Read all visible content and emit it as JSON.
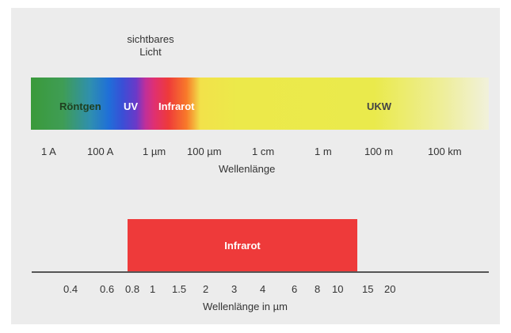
{
  "visible_light_label": "sichtbares Licht",
  "spectrum_bands": [
    {
      "label": "Röntgen",
      "color": "#1f3f1f"
    },
    {
      "label": "UV",
      "color": "#ffffff"
    },
    {
      "label": "Infrarot",
      "color": "#ffffff"
    },
    {
      "label": "UKW",
      "color": "#444444"
    }
  ],
  "top_axis": {
    "ticks": [
      "1 A",
      "100 A",
      "1 µm",
      "100 µm",
      "1 cm",
      "1 m",
      "100 m",
      "100 km"
    ],
    "title": "Wellenlänge"
  },
  "infrared_band": {
    "label": "Infrarot",
    "from_um": 0.8,
    "to_um": 13,
    "color": "#ee3a3a"
  },
  "bottom_axis": {
    "ticks": [
      "0.4",
      "0.6",
      "0.8",
      "1",
      "1.5",
      "2",
      "3",
      "4",
      "6",
      "8",
      "10",
      "15",
      "20"
    ],
    "title": "Wellenlänge in µm"
  },
  "colors": {
    "background": "#ececec",
    "infrared": "#ee3a3a"
  }
}
